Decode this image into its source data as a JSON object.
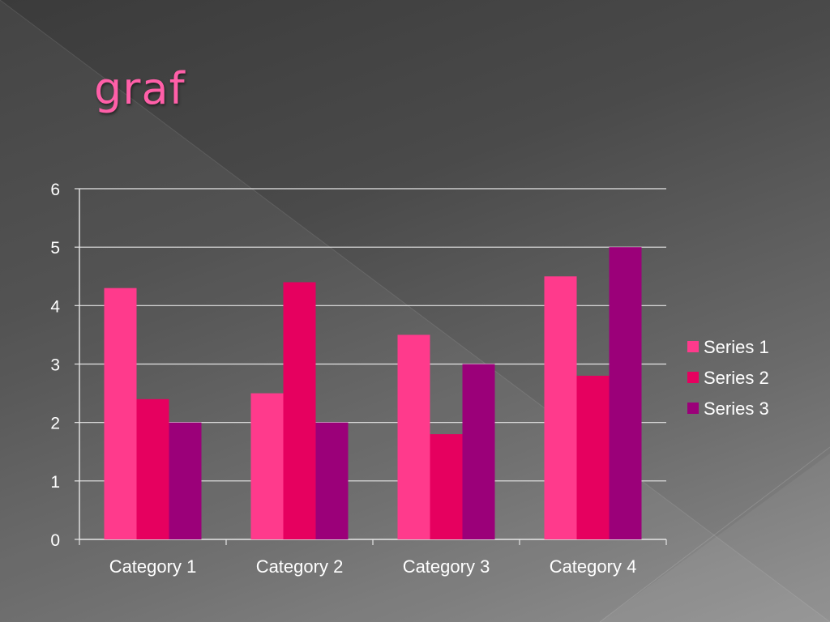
{
  "slide": {
    "title": "graf",
    "title_color": "#ff5fa8"
  },
  "chart_data": {
    "type": "bar",
    "categories": [
      "Category 1",
      "Category 2",
      "Category 3",
      "Category 4"
    ],
    "series": [
      {
        "name": "Series 1",
        "color": "#ff3a8c",
        "values": [
          4.3,
          2.5,
          3.5,
          4.5
        ]
      },
      {
        "name": "Series 2",
        "color": "#e6005f",
        "values": [
          2.4,
          4.4,
          1.8,
          2.8
        ]
      },
      {
        "name": "Series 3",
        "color": "#9b0079",
        "values": [
          2,
          2,
          3,
          5
        ]
      }
    ],
    "y_ticks": [
      "0",
      "1",
      "2",
      "3",
      "4",
      "5",
      "6"
    ],
    "ylim": [
      0,
      6
    ],
    "grid": true,
    "legend": "right",
    "title": "",
    "xlabel": "",
    "ylabel": ""
  }
}
